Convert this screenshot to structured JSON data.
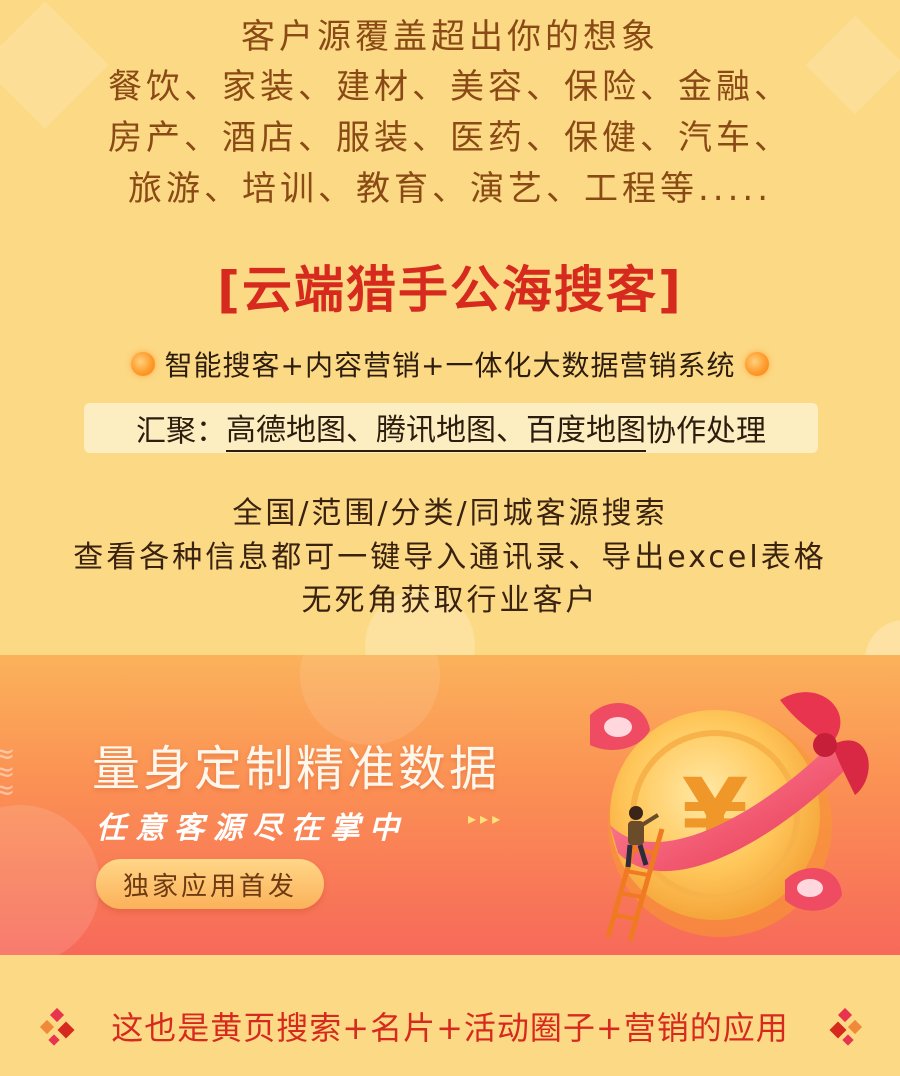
{
  "headline": {
    "line0": "客户源覆盖超出你的想象",
    "line1": "餐饮、家装、建材、美容、保险、金融、",
    "line2": "房产、酒店、服装、医药、保健、汽车、",
    "line3": "旅游、培训、教育、演艺、工程等....."
  },
  "brand": {
    "title": "[云端猎手公海搜客]"
  },
  "feature": {
    "text": "智能搜客+内容营销+一体化大数据营销系统"
  },
  "gather": {
    "prefix": "汇聚：",
    "maps": "高德地图、腾讯地图、百度地图",
    "suffix": "协作处理"
  },
  "description": {
    "line0": "全国/范围/分类/同城客源搜索",
    "line1": "查看各种信息都可一键导入通讯录、导出excel表格",
    "line2": "无死角获取行业客户"
  },
  "banner": {
    "title": "量身定制精准数据",
    "subtitle": "任意客源尽在掌中",
    "arrows": "▸▸▸",
    "button_label": "独家应用首发",
    "coin_symbol": "¥"
  },
  "footer": {
    "text": "这也是黄页搜索+名片+活动圈子+营销的应用"
  },
  "icons": {
    "feature_dot": "orange-dot-icon",
    "coin": "yuan-coin-icon",
    "ladder": "ladder-icon",
    "person": "climbing-person-icon",
    "ribbon": "ribbon-bow-icon",
    "side_diamonds": "red-diamond-cluster-icon"
  },
  "colors": {
    "background": "#fcd985",
    "headline_text": "#8a4a16",
    "brand_red": "#d62a1f",
    "banner_top": "#fbb25a",
    "banner_bottom": "#f7695a",
    "button": "#fcb15a"
  }
}
